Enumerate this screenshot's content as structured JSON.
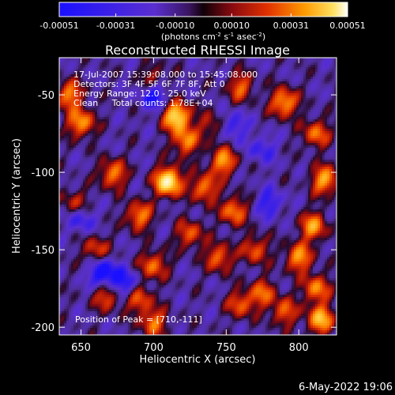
{
  "colorbar": {
    "tick_labels": [
      "-0.00051",
      "-0.00031",
      "-0.00010",
      "0.00010",
      "0.00031",
      "0.00051"
    ],
    "units": "(photons cm",
    "units_sup1": "-2",
    "units_mid": " s",
    "units_sup2": "-1",
    "units_end": " asec",
    "units_sup3": "-2",
    "units_close": ")",
    "min": -0.00051,
    "max": 0.00051
  },
  "chart_data": {
    "type": "heatmap",
    "title": "Reconstructed RHESSI Image",
    "xlabel": "Heliocentric X (arcsec)",
    "ylabel": "Heliocentric Y (arcsec)",
    "xlim": [
      635,
      826
    ],
    "ylim": [
      -205,
      -26
    ],
    "xticks": [
      650,
      700,
      750,
      800
    ],
    "yticks": [
      -50,
      -100,
      -150,
      -200
    ],
    "annotations": [
      "17-Jul-2007 15:39:08.000 to 15:45:08.000",
      "Detectors: 3F 4F 5F 6F 7F 8F, Att 0",
      "Energy Range: 12.0 - 25.0 keV",
      "Clean     Total counts: 1.78E+04"
    ],
    "peak_label": "Position of Peak = [710,-111]",
    "peak_position": [
      710,
      -111
    ],
    "blobs": [
      {
        "x": 710,
        "y": -106,
        "v": 1.0
      },
      {
        "x": 716,
        "y": -64,
        "v": 0.88
      },
      {
        "x": 722,
        "y": -80,
        "v": 0.55
      },
      {
        "x": 748,
        "y": -93,
        "v": 0.6
      },
      {
        "x": 735,
        "y": -110,
        "v": 0.55
      },
      {
        "x": 672,
        "y": -101,
        "v": 0.55
      },
      {
        "x": 650,
        "y": -68,
        "v": 0.62
      },
      {
        "x": 642,
        "y": -50,
        "v": 0.55
      },
      {
        "x": 690,
        "y": -128,
        "v": 0.55
      },
      {
        "x": 700,
        "y": -160,
        "v": 0.5
      },
      {
        "x": 755,
        "y": -125,
        "v": 0.55
      },
      {
        "x": 770,
        "y": -150,
        "v": 0.45
      },
      {
        "x": 745,
        "y": -155,
        "v": 0.5
      },
      {
        "x": 790,
        "y": -55,
        "v": 0.65
      },
      {
        "x": 812,
        "y": -75,
        "v": 0.5
      },
      {
        "x": 818,
        "y": -105,
        "v": 0.65
      },
      {
        "x": 810,
        "y": -135,
        "v": 0.6
      },
      {
        "x": 800,
        "y": -155,
        "v": 0.6
      },
      {
        "x": 812,
        "y": -175,
        "v": 0.55
      },
      {
        "x": 815,
        "y": -195,
        "v": 0.7
      },
      {
        "x": 760,
        "y": -185,
        "v": 0.45
      },
      {
        "x": 775,
        "y": -178,
        "v": 0.45
      },
      {
        "x": 690,
        "y": -182,
        "v": 0.45
      },
      {
        "x": 700,
        "y": -197,
        "v": 0.5
      },
      {
        "x": 660,
        "y": -150,
        "v": 0.4
      },
      {
        "x": 668,
        "y": -180,
        "v": 0.45
      },
      {
        "x": 760,
        "y": -45,
        "v": 0.45
      },
      {
        "x": 700,
        "y": -40,
        "v": 0.35
      },
      {
        "x": 740,
        "y": -70,
        "v": 0.3
      },
      {
        "x": 790,
        "y": -190,
        "v": 0.45
      },
      {
        "x": 646,
        "y": -120,
        "v": 0.35
      },
      {
        "x": 725,
        "y": -140,
        "v": 0.45
      }
    ],
    "negative_regions": [
      {
        "x": 700,
        "y": -50,
        "v": -0.5
      },
      {
        "x": 665,
        "y": -165,
        "v": -0.6
      },
      {
        "x": 680,
        "y": -172,
        "v": -0.45
      },
      {
        "x": 755,
        "y": -70,
        "v": -0.35
      },
      {
        "x": 780,
        "y": -120,
        "v": -0.35
      },
      {
        "x": 650,
        "y": -130,
        "v": -0.35
      },
      {
        "x": 775,
        "y": -85,
        "v": -0.3
      }
    ]
  },
  "footer": {
    "date": "6-May-2022 19:06"
  }
}
